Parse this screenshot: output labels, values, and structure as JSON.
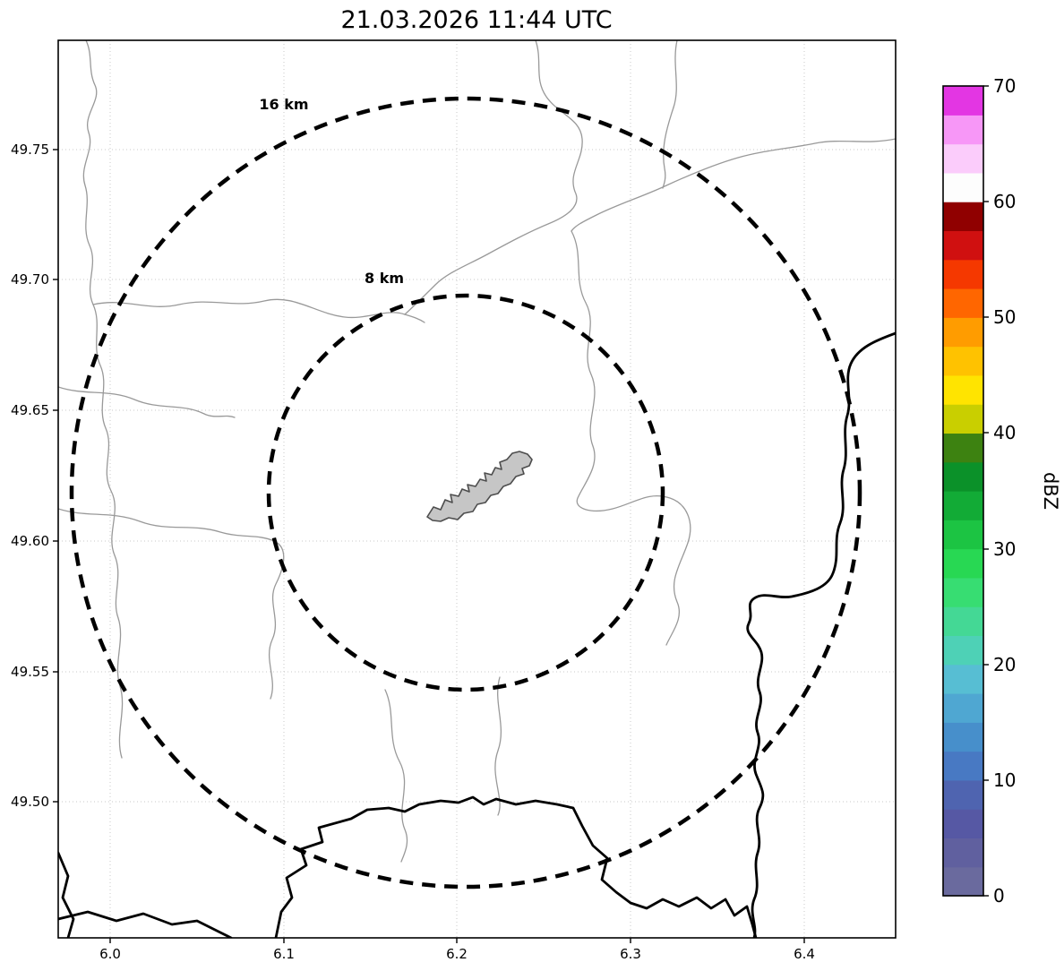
{
  "title": "21.03.2026 11:44 UTC",
  "axes": {
    "x_ticks": [
      "6.0",
      "6.1",
      "6.2",
      "6.3",
      "6.4"
    ],
    "y_ticks": [
      "49.75",
      "49.70",
      "49.65",
      "49.60",
      "49.55",
      "49.50"
    ]
  },
  "map": {
    "range_rings": [
      {
        "label": "16 km"
      },
      {
        "label": "8 km"
      }
    ],
    "city_fill": "#c6c6c6",
    "city_stroke": "#4d4d4d",
    "country_border_color": "#000000",
    "minor_boundary_color": "#999999"
  },
  "colorbar": {
    "label": "dBZ",
    "ticks": [
      "0",
      "10",
      "20",
      "30",
      "40",
      "50",
      "60",
      "70"
    ],
    "band_colors_bottom_to_top": [
      "#6a6a9e",
      "#60609f",
      "#5658a4",
      "#4f64b0",
      "#4879c3",
      "#478fcb",
      "#4fa7d2",
      "#57bed3",
      "#4ed1b6",
      "#44d895",
      "#37dd72",
      "#28d853",
      "#1cc443",
      "#12ab36",
      "#0b9129",
      "#3d8211",
      "#c9cf00",
      "#ffe400",
      "#ffc200",
      "#ff9c00",
      "#ff6600",
      "#f53800",
      "#d01010",
      "#900000",
      "#fdfdfd",
      "#fbccfb",
      "#f797f7",
      "#e336e3"
    ]
  }
}
